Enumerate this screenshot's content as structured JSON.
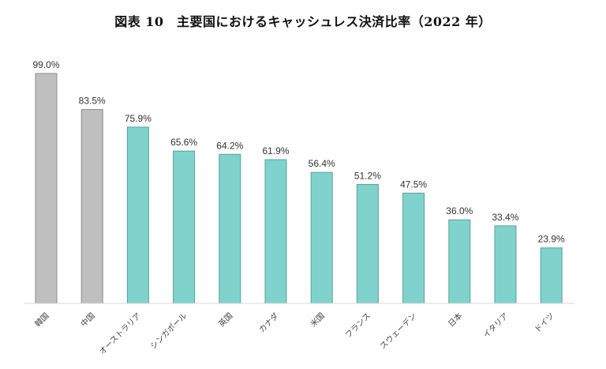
{
  "chart_data": {
    "type": "bar",
    "title": "図表 10　主要国におけるキャッシュレス決済比率（2022 年）",
    "xlabel": "",
    "ylabel": "",
    "ylim": [
      0,
      100
    ],
    "grid": false,
    "categories": [
      "韓国",
      "中国",
      "オーストラリア",
      "シンガポール",
      "英国",
      "カナダ",
      "米国",
      "フランス",
      "スウェーデン",
      "日本",
      "イタリア",
      "ドイツ"
    ],
    "values": [
      99.0,
      83.5,
      75.9,
      65.6,
      64.2,
      61.9,
      56.4,
      51.2,
      47.5,
      36.0,
      33.4,
      23.9
    ],
    "data_labels": [
      "99.0%",
      "83.5%",
      "75.9%",
      "65.6%",
      "64.2%",
      "61.9%",
      "56.4%",
      "51.2%",
      "47.5%",
      "36.0%",
      "33.4%",
      "23.9%"
    ],
    "bar_colors": [
      "#bfbfbf",
      "#bfbfbf",
      "#7fd3cc",
      "#7fd3cc",
      "#7fd3cc",
      "#7fd3cc",
      "#7fd3cc",
      "#7fd3cc",
      "#7fd3cc",
      "#7fd3cc",
      "#7fd3cc",
      "#7fd3cc"
    ]
  }
}
